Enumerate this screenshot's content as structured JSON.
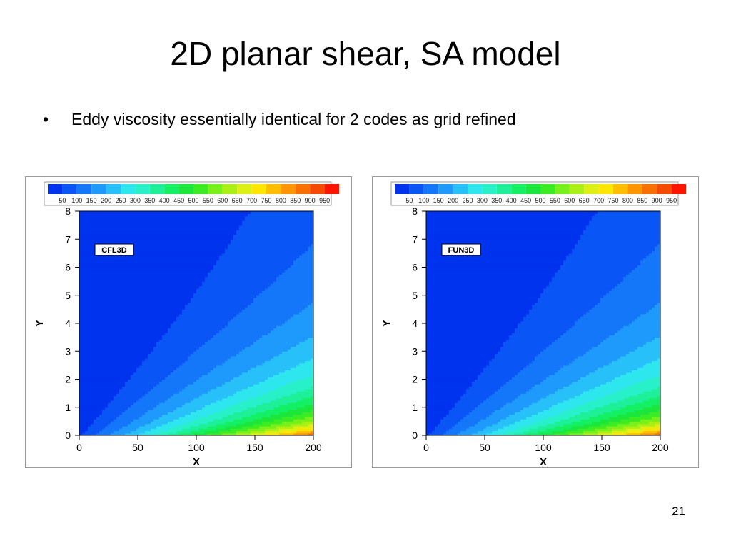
{
  "slide": {
    "title": "2D planar shear, SA model",
    "bullets": [
      "Eddy viscosity essentially identical for 2 codes as grid refined"
    ],
    "page_number": "21"
  },
  "colormap": [
    "#0033ee",
    "#0a55f5",
    "#1477fa",
    "#1e99fc",
    "#28c0f8",
    "#2ee6ee",
    "#28f0c8",
    "#1ef09a",
    "#14f064",
    "#1ae63c",
    "#3cec22",
    "#78f01a",
    "#aaf014",
    "#dcf014",
    "#ffe600",
    "#ffbe00",
    "#ff9600",
    "#fa7000",
    "#f54a00",
    "#ff1400"
  ],
  "chart_data": [
    {
      "type": "heatmap",
      "label": "CFL3D",
      "xlabel": "X",
      "ylabel": "Y",
      "xlim": [
        0,
        200
      ],
      "ylim": [
        0,
        8
      ],
      "x_ticks": [
        0,
        50,
        100,
        150,
        200
      ],
      "y_ticks": [
        0,
        1,
        2,
        3,
        4,
        5,
        6,
        7,
        8
      ],
      "legend_levels": [
        50,
        100,
        150,
        200,
        250,
        300,
        350,
        400,
        450,
        500,
        550,
        600,
        650,
        700,
        750,
        800,
        850,
        900,
        950
      ],
      "legend_placement": "top",
      "lip_x": 2
    },
    {
      "type": "heatmap",
      "label": "FUN3D",
      "xlabel": "X",
      "ylabel": "Y",
      "xlim": [
        0,
        200
      ],
      "ylim": [
        0,
        8
      ],
      "x_ticks": [
        0,
        50,
        100,
        150,
        200
      ],
      "y_ticks": [
        0,
        1,
        2,
        3,
        4,
        5,
        6,
        7,
        8
      ],
      "legend_levels": [
        50,
        100,
        150,
        200,
        250,
        300,
        350,
        400,
        450,
        500,
        550,
        600,
        650,
        700,
        750,
        800,
        850,
        900,
        950
      ],
      "legend_placement": "top",
      "lip_x": 2
    }
  ]
}
